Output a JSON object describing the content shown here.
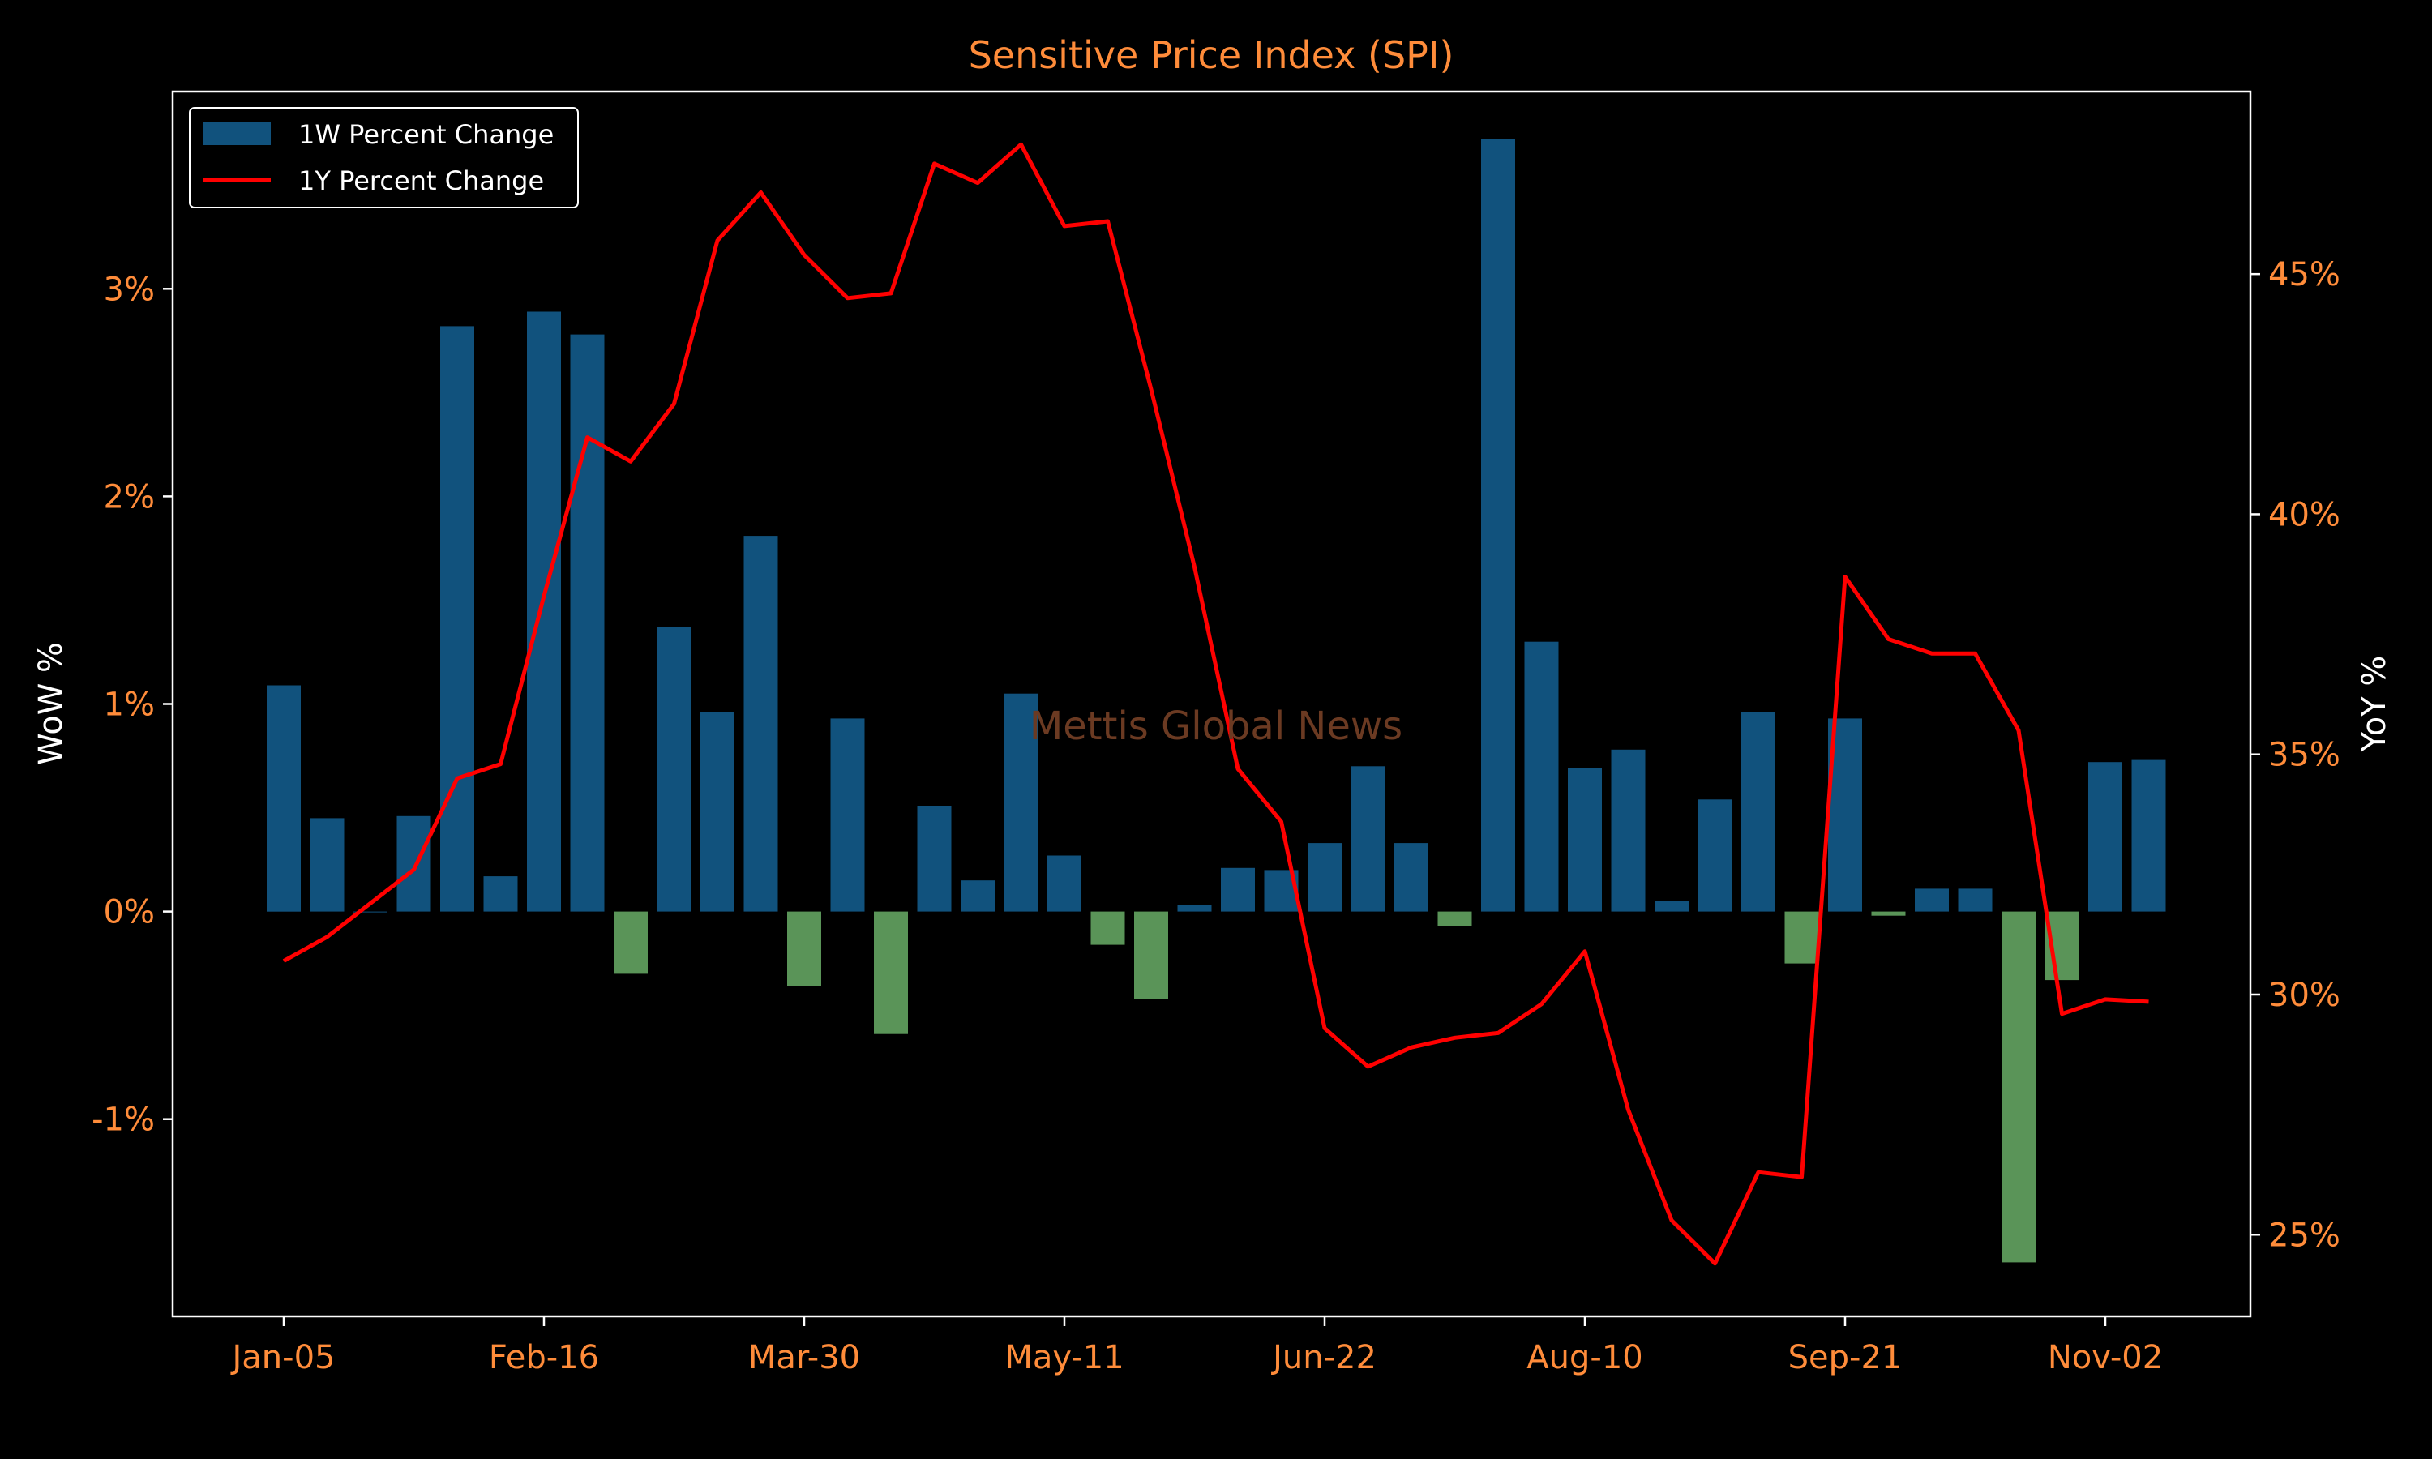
{
  "chart_data": {
    "type": "bar+line",
    "title": "Sensitive Price Index (SPI)",
    "watermark": "Mettis Global News",
    "x_tick_labels": [
      "Jan-05",
      "Feb-16",
      "Mar-30",
      "May-11",
      "Jun-22",
      "Aug-10",
      "Sep-21",
      "Nov-02"
    ],
    "x_tick_indices": [
      0,
      6,
      12,
      18,
      24,
      30,
      36,
      42
    ],
    "left_axis": {
      "label": "WoW %",
      "range": [
        -1.95,
        3.95
      ],
      "ticks": [
        -1,
        0,
        1,
        2,
        3
      ],
      "tick_labels": [
        "-1%",
        "0%",
        "1%",
        "2%",
        "3%"
      ]
    },
    "right_axis": {
      "label": "YoY %",
      "range": [
        23.3,
        48.8
      ],
      "ticks": [
        25,
        30,
        35,
        40,
        45
      ],
      "tick_labels": [
        "25%",
        "30%",
        "35%",
        "40%",
        "45%"
      ]
    },
    "legend": {
      "placement": "top-left",
      "entries": [
        "1W Percent Change",
        "1Y Percent Change"
      ]
    },
    "series": [
      {
        "name": "1W Percent Change",
        "type": "bar",
        "axis": "left",
        "positive_color": "#11527d",
        "negative_color": "#5a9458",
        "values": [
          1.09,
          0.45,
          0.0,
          0.46,
          2.82,
          0.17,
          2.89,
          2.78,
          -0.3,
          1.37,
          0.96,
          1.81,
          -0.36,
          0.93,
          -0.59,
          0.51,
          0.15,
          1.05,
          0.27,
          -0.16,
          -0.42,
          0.03,
          0.21,
          0.2,
          0.33,
          0.7,
          0.33,
          -0.07,
          3.72,
          1.3,
          0.69,
          0.78,
          0.05,
          0.54,
          0.96,
          -0.25,
          0.93,
          -0.02,
          0.11,
          0.11,
          -1.69,
          -0.33,
          0.72,
          0.73
        ]
      },
      {
        "name": "1Y Percent Change",
        "type": "line",
        "axis": "right",
        "color": "#ff0000",
        "values": [
          30.7,
          31.2,
          31.9,
          32.6,
          34.5,
          34.8,
          38.3,
          41.6,
          41.1,
          42.3,
          45.7,
          46.7,
          45.4,
          44.5,
          44.6,
          47.3,
          46.9,
          47.7,
          46.0,
          46.1,
          42.6,
          38.9,
          34.7,
          33.6,
          29.3,
          28.5,
          28.9,
          29.1,
          29.2,
          29.8,
          30.9,
          27.6,
          25.3,
          24.4,
          26.3,
          26.2,
          38.7,
          37.4,
          37.1,
          37.1,
          35.5,
          29.6,
          29.9,
          29.85
        ]
      }
    ]
  }
}
